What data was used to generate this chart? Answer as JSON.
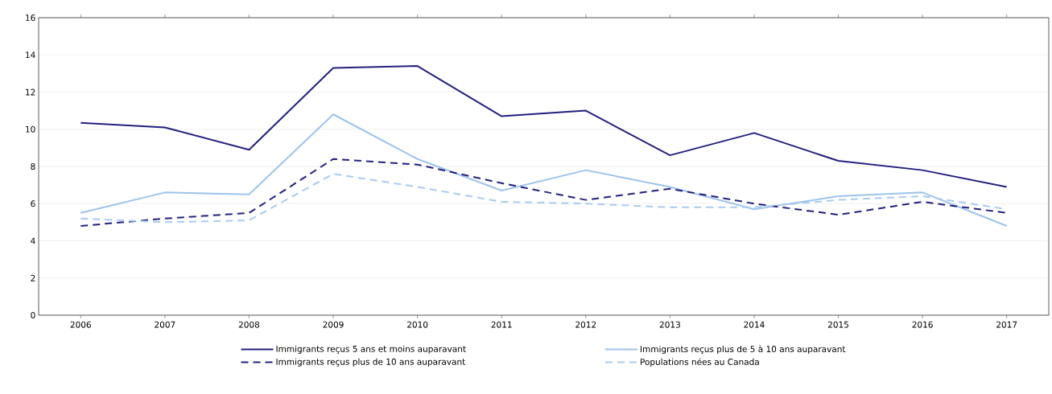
{
  "chart_data": {
    "type": "line",
    "categories": [
      "2006",
      "2007",
      "2008",
      "2009",
      "2010",
      "2011",
      "2012",
      "2013",
      "2014",
      "2015",
      "2016",
      "2017"
    ],
    "series": [
      {
        "name": "Immigrants reçus 5 ans et moins auparavant",
        "color": "#23207e",
        "line_style": "solid",
        "values": [
          10.35,
          10.1,
          8.9,
          13.3,
          13.4,
          10.7,
          11.0,
          8.6,
          9.8,
          8.3,
          7.8,
          6.9
        ]
      },
      {
        "name": "Immigrants reçus plus de 5 à 10 ans auparavant",
        "color": "#9dc3ec",
        "line_style": "solid",
        "values": [
          5.5,
          6.6,
          6.5,
          10.8,
          8.4,
          6.7,
          7.8,
          6.9,
          5.7,
          6.4,
          6.6,
          4.8
        ]
      },
      {
        "name": "Immigrants reçus plus de 10 ans auparavant",
        "color": "#23207e",
        "line_style": "dashed",
        "values": [
          4.8,
          5.2,
          5.5,
          8.4,
          8.1,
          7.1,
          6.2,
          6.8,
          6.0,
          5.4,
          6.1,
          5.5
        ]
      },
      {
        "name": "Populations nées au Canada",
        "color": "#a9cbef",
        "line_style": "dashed",
        "values": [
          5.2,
          5.0,
          5.1,
          7.6,
          6.9,
          6.1,
          6.0,
          5.8,
          5.8,
          6.2,
          6.4,
          5.7
        ]
      }
    ],
    "ylim": [
      0,
      16
    ],
    "yticks": [
      0,
      2,
      4,
      6,
      8,
      10,
      12,
      14,
      16
    ],
    "grid": "y",
    "legend": "bottom"
  }
}
